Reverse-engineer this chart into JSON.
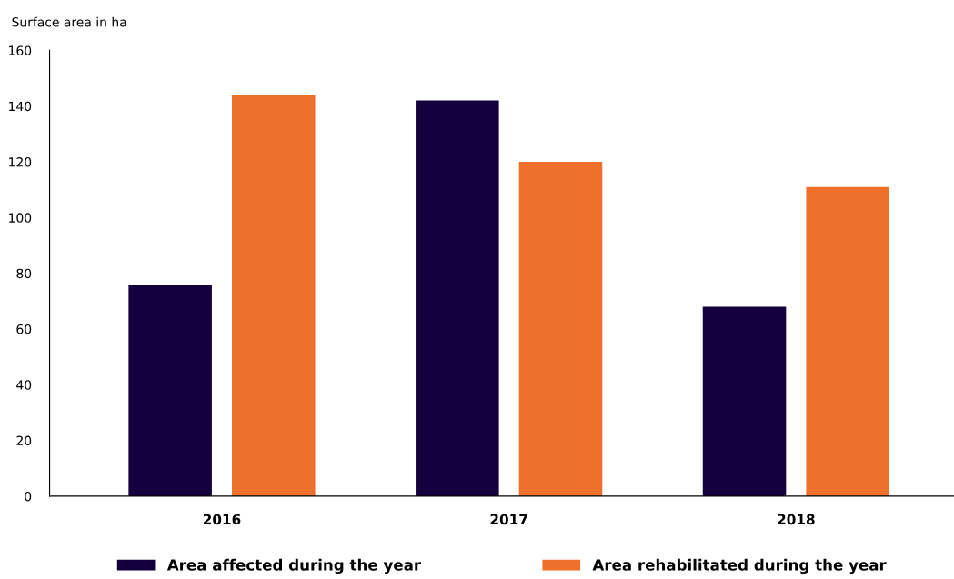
{
  "chart_data": {
    "type": "bar",
    "ylabel": "Surface area in ha",
    "categories": [
      "2016",
      "2017",
      "2018"
    ],
    "series": [
      {
        "name": "Area affected during the year",
        "color": "#14003c",
        "values": [
          76,
          142,
          68
        ]
      },
      {
        "name": "Area rehabilitated during the year",
        "color": "#ee702b",
        "values": [
          144,
          120,
          111
        ]
      }
    ],
    "ylim": [
      0,
      160
    ],
    "yticks": [
      0,
      20,
      40,
      60,
      80,
      100,
      120,
      140,
      160
    ],
    "grid": false,
    "legend": "bottom"
  }
}
